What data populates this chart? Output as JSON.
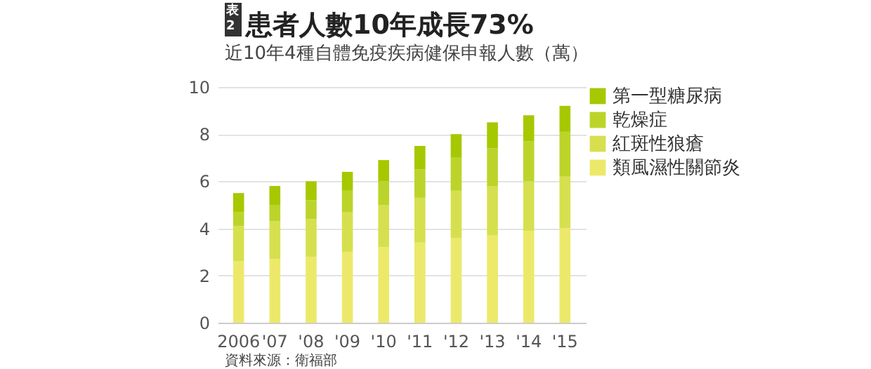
{
  "chart_data": {
    "type": "bar",
    "stacked": true,
    "title": "患者人數10年成長73%",
    "subtitle": "近10年4種自體免疫疾病健保申報人數（萬）",
    "annotations": [
      "表2",
      "資料來源：衛福部"
    ],
    "categories": [
      "2006",
      "'07",
      "'08",
      "'09",
      "'10",
      "'11",
      "'12",
      "'13",
      "'14",
      "'15"
    ],
    "series": [
      {
        "name": "類風濕性關節炎",
        "color": "#ece96a",
        "values": [
          2.6,
          2.7,
          2.8,
          3.0,
          3.2,
          3.4,
          3.6,
          3.7,
          3.9,
          4.0
        ]
      },
      {
        "name": "紅斑性狼瘡",
        "color": "#d6e04e",
        "values": [
          1.5,
          1.6,
          1.6,
          1.7,
          1.8,
          1.9,
          2.0,
          2.1,
          2.1,
          2.2
        ]
      },
      {
        "name": "乾燥症",
        "color": "#bcd42a",
        "values": [
          0.6,
          0.7,
          0.8,
          0.9,
          1.0,
          1.2,
          1.4,
          1.6,
          1.7,
          1.9
        ]
      },
      {
        "name": "第一型糖尿病",
        "color": "#a6c800",
        "values": [
          0.8,
          0.8,
          0.8,
          0.8,
          0.9,
          1.0,
          1.0,
          1.1,
          1.1,
          1.1
        ]
      }
    ],
    "ylim": [
      0,
      10
    ],
    "yticks": [
      0,
      2,
      4,
      6,
      8,
      10
    ],
    "grid": "y",
    "legend": "top right"
  }
}
